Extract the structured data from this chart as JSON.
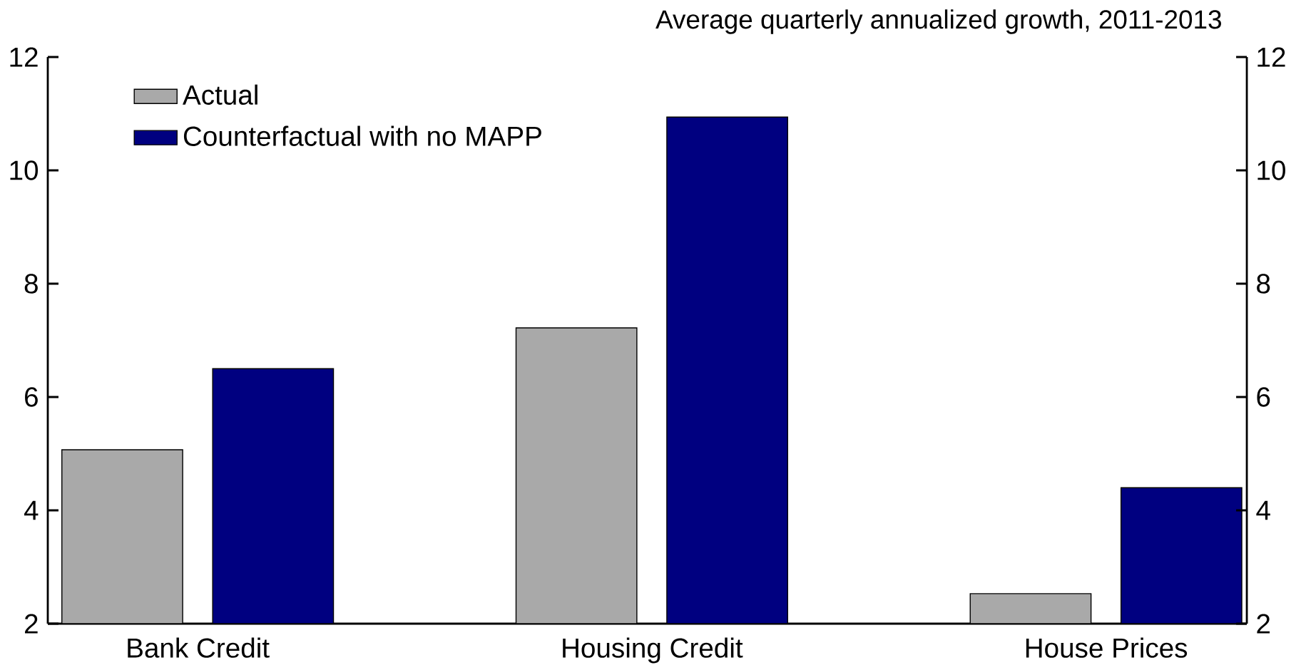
{
  "chart_data": {
    "type": "bar",
    "title": "Average quarterly annualized growth, 2011-2013",
    "categories": [
      "Bank Credit",
      "Housing Credit",
      "House Prices"
    ],
    "series": [
      {
        "name": "Actual",
        "color": "#a9a9a9",
        "values": [
          5.07,
          7.22,
          2.53
        ]
      },
      {
        "name": "Counterfactual with no MAPP",
        "color": "#000080",
        "values": [
          6.5,
          10.94,
          4.4
        ]
      }
    ],
    "ylim": [
      2,
      12
    ],
    "yticks": [
      2,
      4,
      6,
      8,
      10,
      12
    ],
    "y2lim": [
      2,
      12
    ],
    "y2ticks": [
      2,
      4,
      6,
      8,
      10,
      12
    ],
    "legend": "top left",
    "grid": false
  }
}
